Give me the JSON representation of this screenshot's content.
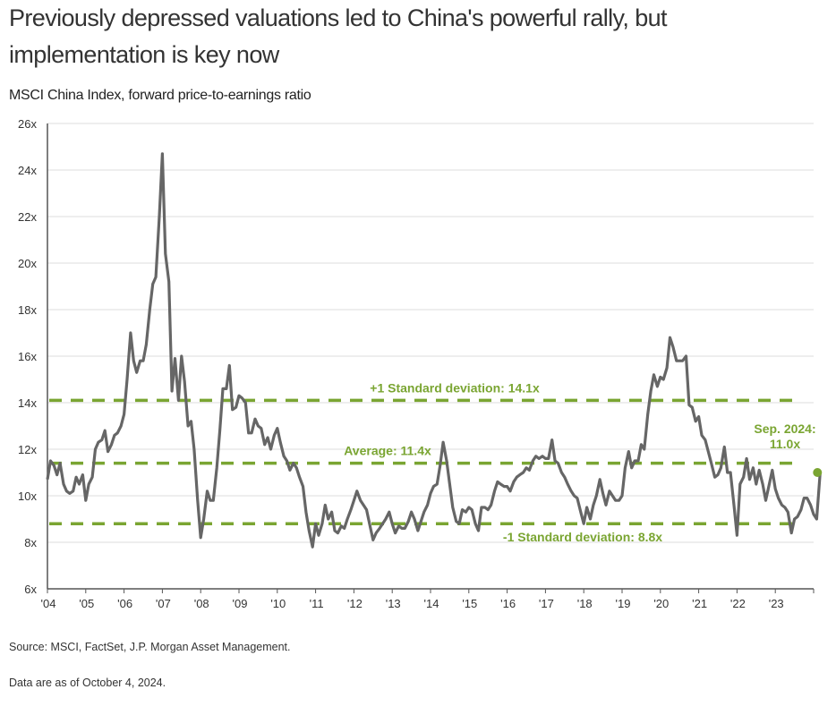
{
  "header": {
    "title": "Previously depressed valuations led to China's powerful rally, but implementation is key now",
    "subtitle": "MSCI China Index, forward price-to-earnings ratio"
  },
  "footer": {
    "source": "Source: MSCI, FactSet, J.P. Morgan Asset Management.",
    "as_of": "Data are as of October 4, 2024."
  },
  "colors": {
    "series": "#666666",
    "reference": "#7aa532",
    "grid": "#dddddd",
    "axis": "#555555"
  },
  "chart_data": {
    "type": "line",
    "title": "MSCI China Index, forward price-to-earnings ratio",
    "xlabel": "",
    "ylabel": "",
    "ylim": [
      6,
      26
    ],
    "xlim": [
      2004,
      2024
    ],
    "grid": true,
    "y_ticks": [
      "6x",
      "8x",
      "10x",
      "12x",
      "14x",
      "16x",
      "18x",
      "20x",
      "22x",
      "24x",
      "26x"
    ],
    "y_tick_values": [
      6,
      8,
      10,
      12,
      14,
      16,
      18,
      20,
      22,
      24,
      26
    ],
    "x_ticks": [
      "'04",
      "'05",
      "'06",
      "'07",
      "'08",
      "'09",
      "'10",
      "'11",
      "'12",
      "'13",
      "'14",
      "'15",
      "'16",
      "'17",
      "'18",
      "'19",
      "'20",
      "'21",
      "'22",
      "'23"
    ],
    "x_tick_values": [
      2004,
      2005,
      2006,
      2007,
      2008,
      2009,
      2010,
      2011,
      2012,
      2013,
      2014,
      2015,
      2016,
      2017,
      2018,
      2019,
      2020,
      2021,
      2022,
      2023
    ],
    "series": [
      {
        "name": "MSCI China forward P/E",
        "points": [
          [
            2004.0,
            10.7
          ],
          [
            2004.08,
            11.5
          ],
          [
            2004.17,
            11.3
          ],
          [
            2004.25,
            10.9
          ],
          [
            2004.33,
            11.4
          ],
          [
            2004.42,
            10.5
          ],
          [
            2004.5,
            10.2
          ],
          [
            2004.58,
            10.1
          ],
          [
            2004.67,
            10.2
          ],
          [
            2004.75,
            10.8
          ],
          [
            2004.83,
            10.5
          ],
          [
            2004.92,
            10.9
          ],
          [
            2005.0,
            9.8
          ],
          [
            2005.08,
            10.5
          ],
          [
            2005.17,
            10.8
          ],
          [
            2005.25,
            12.0
          ],
          [
            2005.33,
            12.3
          ],
          [
            2005.42,
            12.4
          ],
          [
            2005.5,
            12.8
          ],
          [
            2005.58,
            11.9
          ],
          [
            2005.67,
            12.2
          ],
          [
            2005.75,
            12.6
          ],
          [
            2005.83,
            12.7
          ],
          [
            2005.92,
            13.0
          ],
          [
            2006.0,
            13.5
          ],
          [
            2006.08,
            15.0
          ],
          [
            2006.17,
            17.0
          ],
          [
            2006.25,
            15.8
          ],
          [
            2006.33,
            15.3
          ],
          [
            2006.42,
            15.8
          ],
          [
            2006.5,
            15.8
          ],
          [
            2006.58,
            16.5
          ],
          [
            2006.67,
            18.0
          ],
          [
            2006.75,
            19.1
          ],
          [
            2006.83,
            19.4
          ],
          [
            2006.92,
            22.0
          ],
          [
            2007.0,
            24.7
          ],
          [
            2007.08,
            20.4
          ],
          [
            2007.17,
            19.2
          ],
          [
            2007.25,
            14.5
          ],
          [
            2007.33,
            15.9
          ],
          [
            2007.42,
            14.1
          ],
          [
            2007.5,
            16.0
          ],
          [
            2007.58,
            14.9
          ],
          [
            2007.67,
            13.0
          ],
          [
            2007.75,
            13.2
          ],
          [
            2007.83,
            12.0
          ],
          [
            2007.92,
            9.8
          ],
          [
            2008.0,
            8.2
          ],
          [
            2008.08,
            9.0
          ],
          [
            2008.17,
            10.2
          ],
          [
            2008.25,
            9.8
          ],
          [
            2008.33,
            9.8
          ],
          [
            2008.42,
            11.2
          ],
          [
            2008.5,
            12.8
          ],
          [
            2008.58,
            14.6
          ],
          [
            2008.67,
            14.6
          ],
          [
            2008.75,
            15.6
          ],
          [
            2008.83,
            13.7
          ],
          [
            2008.92,
            13.8
          ],
          [
            2009.0,
            14.3
          ],
          [
            2009.08,
            14.2
          ],
          [
            2009.17,
            14.0
          ],
          [
            2009.25,
            12.7
          ],
          [
            2009.33,
            12.7
          ],
          [
            2009.42,
            13.3
          ],
          [
            2009.5,
            13.0
          ],
          [
            2009.58,
            12.9
          ],
          [
            2009.67,
            12.2
          ],
          [
            2009.75,
            12.5
          ],
          [
            2009.83,
            12.0
          ],
          [
            2009.92,
            12.6
          ],
          [
            2010.0,
            12.9
          ],
          [
            2010.08,
            12.3
          ],
          [
            2010.17,
            11.7
          ],
          [
            2010.25,
            11.5
          ],
          [
            2010.33,
            11.1
          ],
          [
            2010.42,
            11.4
          ],
          [
            2010.5,
            11.2
          ],
          [
            2010.58,
            10.8
          ],
          [
            2010.67,
            10.4
          ],
          [
            2010.75,
            9.3
          ],
          [
            2010.83,
            8.5
          ],
          [
            2010.92,
            7.8
          ],
          [
            2011.0,
            8.8
          ],
          [
            2011.08,
            8.3
          ],
          [
            2011.17,
            8.8
          ],
          [
            2011.25,
            9.6
          ],
          [
            2011.33,
            9.0
          ],
          [
            2011.42,
            9.3
          ],
          [
            2011.5,
            8.5
          ],
          [
            2011.58,
            8.4
          ],
          [
            2011.67,
            8.7
          ],
          [
            2011.75,
            8.6
          ],
          [
            2011.83,
            9.0
          ],
          [
            2011.92,
            9.4
          ],
          [
            2012.0,
            9.8
          ],
          [
            2012.08,
            10.2
          ],
          [
            2012.17,
            9.8
          ],
          [
            2012.25,
            9.6
          ],
          [
            2012.33,
            9.4
          ],
          [
            2012.42,
            8.7
          ],
          [
            2012.5,
            8.1
          ],
          [
            2012.58,
            8.4
          ],
          [
            2012.67,
            8.6
          ],
          [
            2012.75,
            8.8
          ],
          [
            2012.83,
            9.0
          ],
          [
            2012.92,
            9.3
          ],
          [
            2013.0,
            8.8
          ],
          [
            2013.08,
            8.4
          ],
          [
            2013.17,
            8.7
          ],
          [
            2013.25,
            8.6
          ],
          [
            2013.33,
            8.6
          ],
          [
            2013.42,
            8.9
          ],
          [
            2013.5,
            9.3
          ],
          [
            2013.58,
            9.0
          ],
          [
            2013.67,
            8.5
          ],
          [
            2013.75,
            8.9
          ],
          [
            2013.83,
            9.3
          ],
          [
            2013.92,
            9.6
          ],
          [
            2014.0,
            10.1
          ],
          [
            2014.08,
            10.4
          ],
          [
            2014.17,
            10.5
          ],
          [
            2014.25,
            11.3
          ],
          [
            2014.33,
            12.3
          ],
          [
            2014.42,
            11.5
          ],
          [
            2014.5,
            10.5
          ],
          [
            2014.58,
            9.5
          ],
          [
            2014.67,
            8.9
          ],
          [
            2014.75,
            8.8
          ],
          [
            2014.83,
            9.4
          ],
          [
            2014.92,
            9.3
          ],
          [
            2015.0,
            9.5
          ],
          [
            2015.08,
            9.4
          ],
          [
            2015.17,
            8.8
          ],
          [
            2015.25,
            8.5
          ],
          [
            2015.33,
            9.5
          ],
          [
            2015.42,
            9.5
          ],
          [
            2015.5,
            9.4
          ],
          [
            2015.58,
            9.6
          ],
          [
            2015.67,
            10.2
          ],
          [
            2015.75,
            10.6
          ],
          [
            2015.83,
            10.5
          ],
          [
            2015.92,
            10.4
          ],
          [
            2016.0,
            10.4
          ],
          [
            2016.08,
            10.2
          ],
          [
            2016.17,
            10.6
          ],
          [
            2016.25,
            10.8
          ],
          [
            2016.33,
            10.9
          ],
          [
            2016.42,
            11.0
          ],
          [
            2016.5,
            11.2
          ],
          [
            2016.58,
            11.1
          ],
          [
            2016.67,
            11.5
          ],
          [
            2016.75,
            11.7
          ],
          [
            2016.83,
            11.6
          ],
          [
            2016.92,
            11.7
          ],
          [
            2017.0,
            11.6
          ],
          [
            2017.08,
            11.6
          ],
          [
            2017.17,
            12.4
          ],
          [
            2017.25,
            11.5
          ],
          [
            2017.33,
            11.4
          ],
          [
            2017.42,
            11.0
          ],
          [
            2017.5,
            10.8
          ],
          [
            2017.58,
            10.5
          ],
          [
            2017.67,
            10.2
          ],
          [
            2017.75,
            10.0
          ],
          [
            2017.83,
            9.9
          ],
          [
            2017.92,
            9.3
          ],
          [
            2018.0,
            8.8
          ],
          [
            2018.08,
            9.5
          ],
          [
            2018.17,
            9.0
          ],
          [
            2018.25,
            9.6
          ],
          [
            2018.33,
            10.0
          ],
          [
            2018.42,
            10.7
          ],
          [
            2018.5,
            10.1
          ],
          [
            2018.58,
            9.6
          ],
          [
            2018.67,
            10.2
          ],
          [
            2018.75,
            10.0
          ],
          [
            2018.83,
            9.8
          ],
          [
            2018.92,
            9.8
          ],
          [
            2019.0,
            10.0
          ],
          [
            2019.08,
            11.2
          ],
          [
            2019.17,
            11.9
          ],
          [
            2019.25,
            11.2
          ],
          [
            2019.33,
            11.5
          ],
          [
            2019.42,
            11.5
          ],
          [
            2019.5,
            12.2
          ],
          [
            2019.58,
            12.0
          ],
          [
            2019.67,
            13.5
          ],
          [
            2019.75,
            14.5
          ],
          [
            2019.83,
            15.2
          ],
          [
            2019.92,
            14.7
          ],
          [
            2020.0,
            15.1
          ],
          [
            2020.08,
            15.0
          ],
          [
            2020.17,
            15.5
          ],
          [
            2020.25,
            16.8
          ],
          [
            2020.33,
            16.4
          ],
          [
            2020.42,
            15.8
          ],
          [
            2020.5,
            15.8
          ],
          [
            2020.58,
            15.8
          ],
          [
            2020.67,
            16.0
          ],
          [
            2020.75,
            13.9
          ],
          [
            2020.83,
            13.8
          ],
          [
            2020.92,
            13.2
          ],
          [
            2021.0,
            13.4
          ],
          [
            2021.08,
            12.6
          ],
          [
            2021.17,
            12.4
          ],
          [
            2021.25,
            11.9
          ],
          [
            2021.33,
            11.4
          ],
          [
            2021.42,
            10.8
          ],
          [
            2021.5,
            10.9
          ],
          [
            2021.58,
            11.2
          ],
          [
            2021.67,
            12.1
          ],
          [
            2021.75,
            11.0
          ],
          [
            2021.83,
            11.0
          ],
          [
            2021.92,
            9.6
          ],
          [
            2022.0,
            8.3
          ],
          [
            2022.08,
            10.5
          ],
          [
            2022.17,
            10.8
          ],
          [
            2022.25,
            11.6
          ],
          [
            2022.33,
            10.7
          ],
          [
            2022.42,
            11.2
          ],
          [
            2022.5,
            10.5
          ],
          [
            2022.58,
            11.1
          ],
          [
            2022.67,
            10.5
          ],
          [
            2022.75,
            9.8
          ],
          [
            2022.83,
            10.4
          ],
          [
            2022.92,
            11.1
          ],
          [
            2023.0,
            10.3
          ],
          [
            2023.08,
            9.9
          ],
          [
            2023.17,
            9.6
          ],
          [
            2023.25,
            9.5
          ],
          [
            2023.33,
            9.3
          ],
          [
            2023.42,
            8.4
          ],
          [
            2023.5,
            9.0
          ],
          [
            2023.58,
            9.1
          ],
          [
            2023.67,
            9.4
          ],
          [
            2023.75,
            9.9
          ],
          [
            2023.83,
            9.9
          ],
          [
            2023.92,
            9.6
          ],
          [
            2024.0,
            9.2
          ],
          [
            2024.08,
            9.0
          ],
          [
            2024.17,
            11.0
          ]
        ]
      }
    ],
    "reference_lines": [
      {
        "name": "+1 Standard deviation",
        "value": 14.1,
        "label": "+1 Standard deviation: 14.1x"
      },
      {
        "name": "Average",
        "value": 11.4,
        "label": "Average: 11.4x"
      },
      {
        "name": "-1 Standard deviation",
        "value": 8.8,
        "label": "-1 Standard deviation: 8.8x"
      }
    ],
    "annotations": [
      {
        "text_line1": "Sep. 2024:",
        "text_line2": "11.0x",
        "x": 2024.17,
        "y": 11.0
      }
    ]
  }
}
